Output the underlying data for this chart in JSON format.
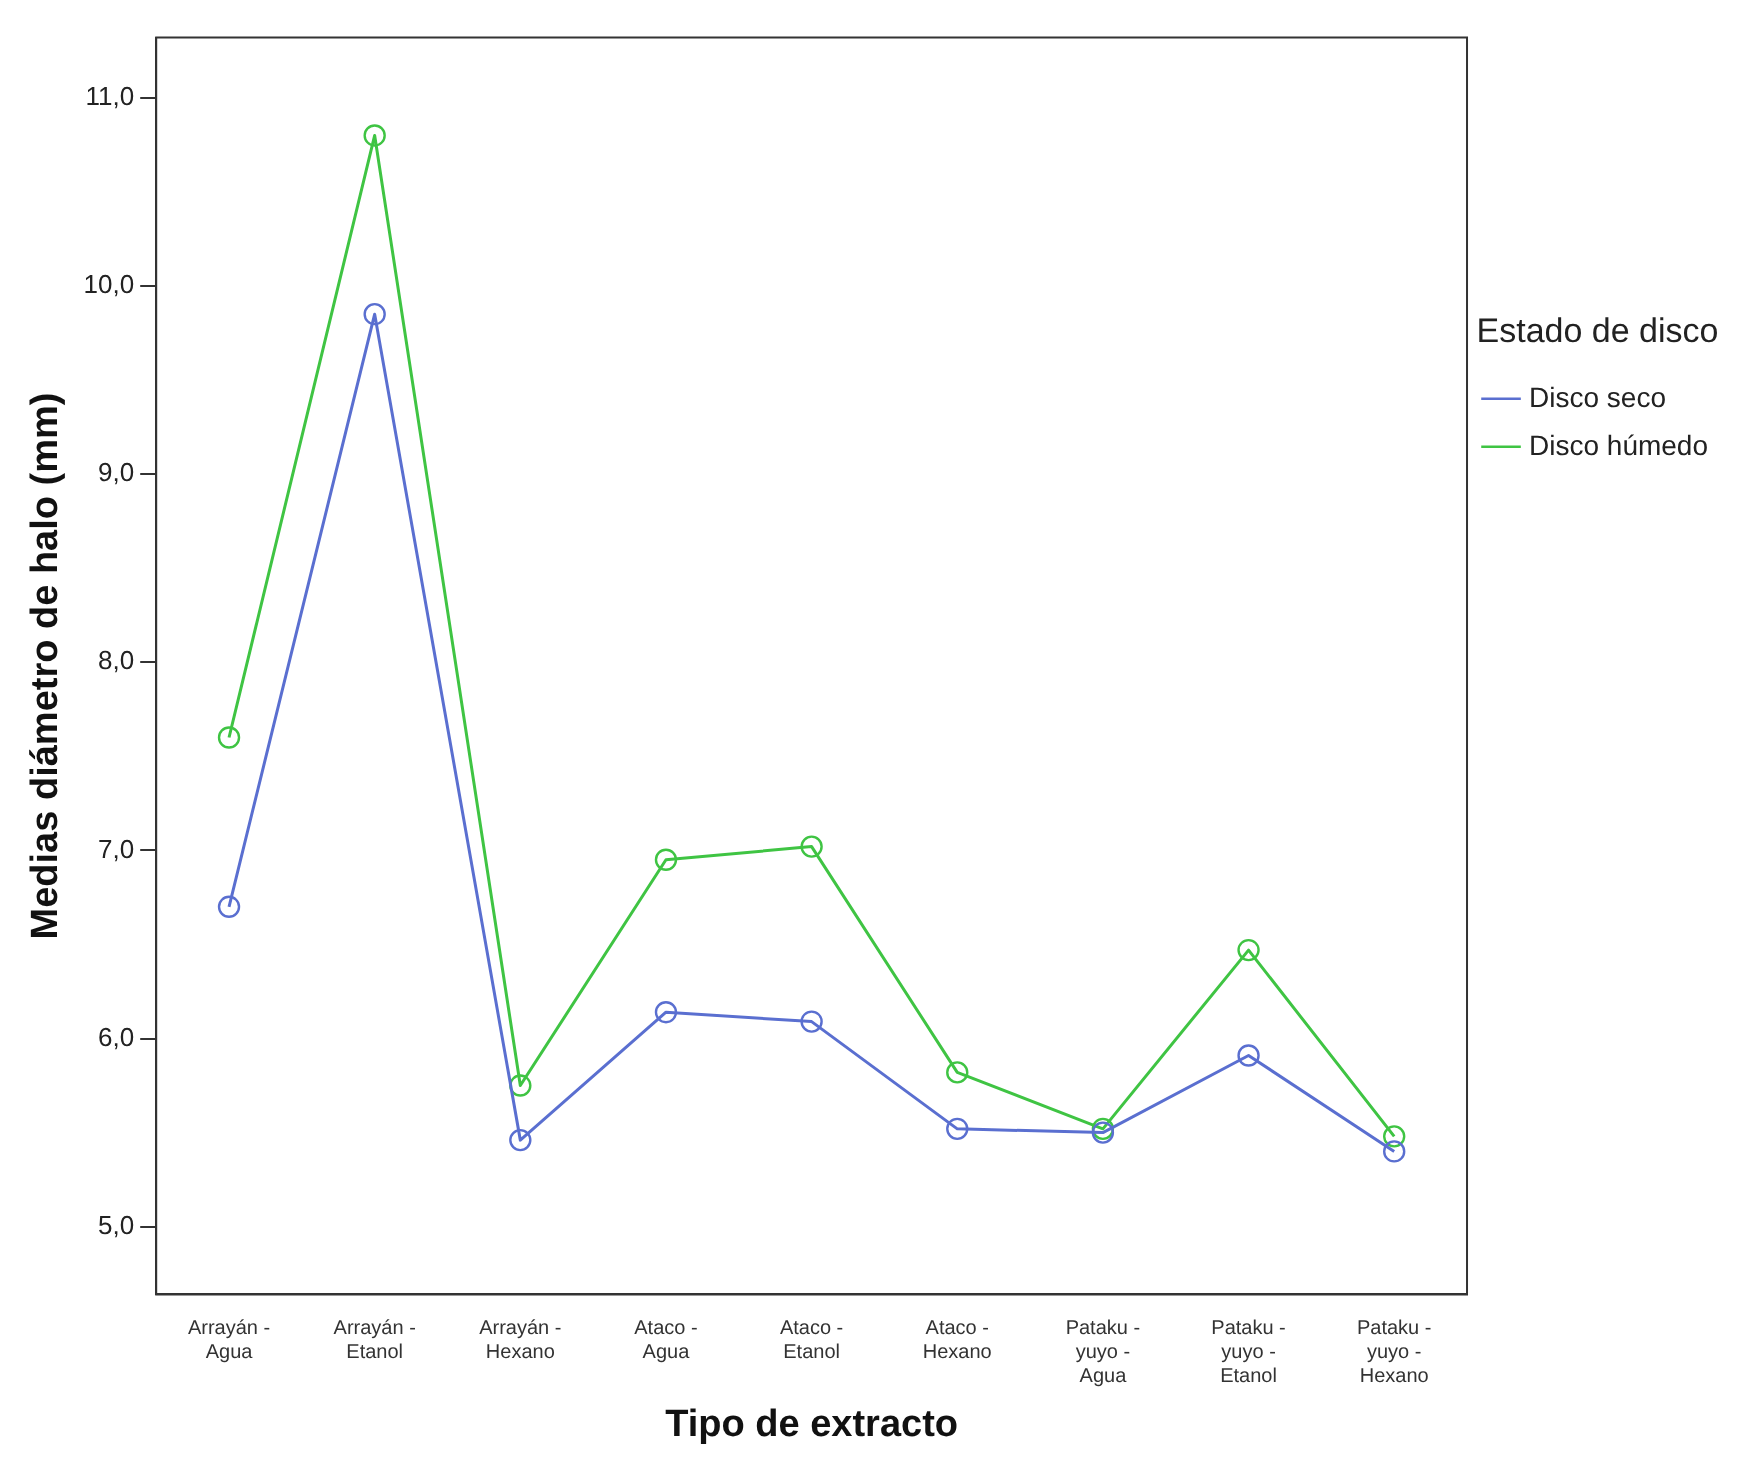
{
  "chart_data": {
    "type": "line",
    "xlabel": "Tipo de extracto",
    "ylabel": "Medias diámetro de halo (mm)",
    "legend_title": "Estado de disco",
    "categories": [
      "Arrayán - Agua",
      "Arrayán - Etanol",
      "Arrayán - Hexano",
      "Ataco - Agua",
      "Ataco - Etanol",
      "Ataco - Hexano",
      "Pataku - yuyo - Agua",
      "Pataku - yuyo - Etanol",
      "Pataku - yuyo - Hexano"
    ],
    "series": [
      {
        "name": "Disco seco",
        "color": "#5a6fd0",
        "values": [
          6.7,
          9.85,
          5.46,
          6.14,
          6.09,
          5.52,
          5.5,
          5.91,
          5.4
        ]
      },
      {
        "name": "Disco húmedo",
        "color": "#3fc443",
        "values": [
          7.6,
          10.8,
          5.75,
          6.95,
          7.02,
          5.82,
          5.52,
          6.47,
          5.48
        ]
      }
    ],
    "ylim": [
      4.64,
      11.32
    ],
    "yticks": [
      {
        "value": 5,
        "label": "5,0"
      },
      {
        "value": 6,
        "label": "6,0"
      },
      {
        "value": 7,
        "label": "7,0"
      },
      {
        "value": 8,
        "label": "8,0"
      },
      {
        "value": 9,
        "label": "9,0"
      },
      {
        "value": 10,
        "label": "10,0"
      },
      {
        "value": 11,
        "label": "11,0"
      }
    ],
    "grid": false,
    "legend": "right",
    "marker": "circle",
    "line_style": "solid"
  }
}
